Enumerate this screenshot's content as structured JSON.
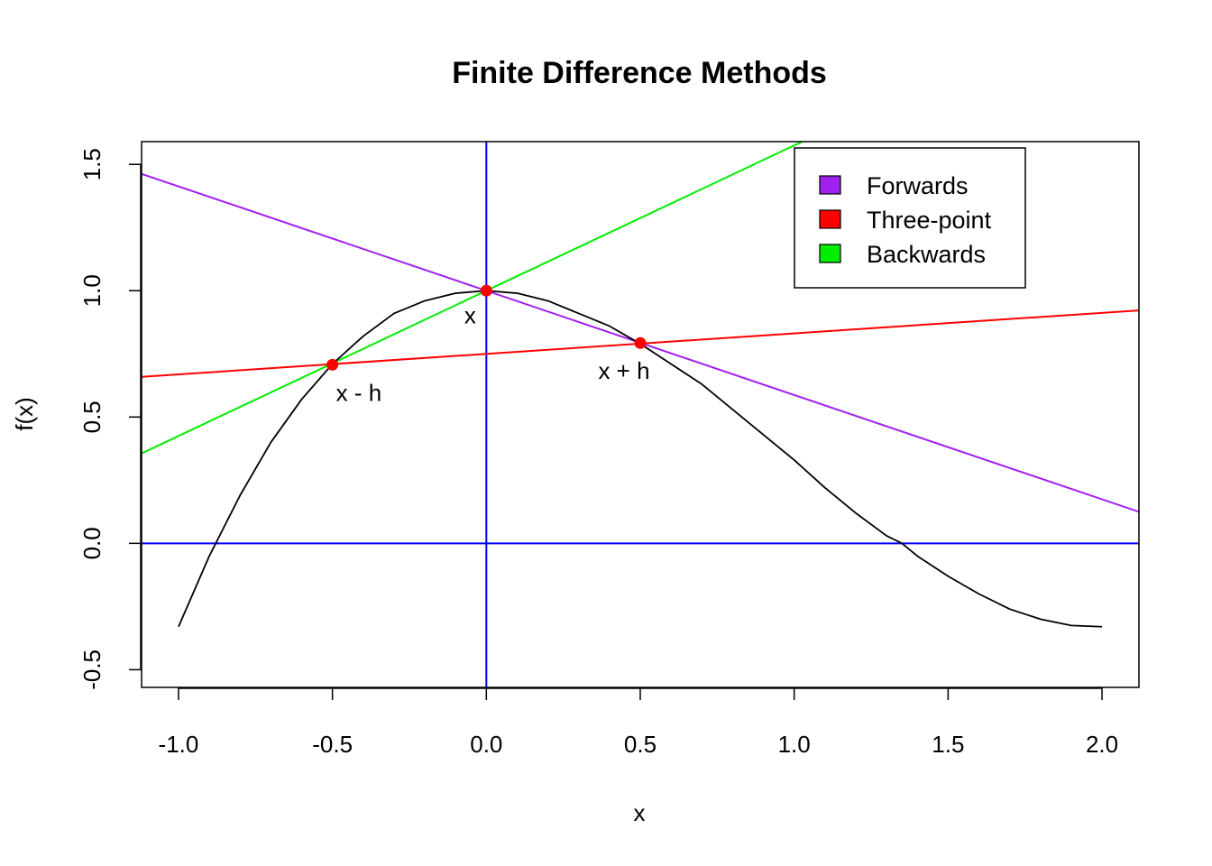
{
  "chart_data": {
    "type": "line",
    "title": "Finite Difference Methods",
    "xlabel": "x",
    "ylabel": "f(x)",
    "xlim": [
      -1.12,
      2.12
    ],
    "ylim": [
      -0.57,
      1.59
    ],
    "xticks": [
      {
        "value": -1.0,
        "label": "-1.0"
      },
      {
        "value": -0.5,
        "label": "-0.5"
      },
      {
        "value": 0.0,
        "label": "0.0"
      },
      {
        "value": 0.5,
        "label": "0.5"
      },
      {
        "value": 1.0,
        "label": "1.0"
      },
      {
        "value": 1.5,
        "label": "1.5"
      },
      {
        "value": 2.0,
        "label": "2.0"
      }
    ],
    "yticks": [
      {
        "value": -0.5,
        "label": "-0.5"
      },
      {
        "value": 0.0,
        "label": "0.0"
      },
      {
        "value": 0.5,
        "label": "0.5"
      },
      {
        "value": 1.0,
        "label": "1.0"
      },
      {
        "value": 1.5,
        "label": "1.5"
      }
    ],
    "curve": {
      "color": "#000000",
      "points": [
        [
          -1.0,
          -0.33
        ],
        [
          -0.9,
          -0.05
        ],
        [
          -0.8,
          0.19
        ],
        [
          -0.7,
          0.4
        ],
        [
          -0.6,
          0.57
        ],
        [
          -0.5,
          0.71
        ],
        [
          -0.4,
          0.82
        ],
        [
          -0.3,
          0.91
        ],
        [
          -0.2,
          0.96
        ],
        [
          -0.1,
          0.99
        ],
        [
          0.0,
          1.0
        ],
        [
          0.1,
          0.99
        ],
        [
          0.2,
          0.96
        ],
        [
          0.3,
          0.91
        ],
        [
          0.4,
          0.86
        ],
        [
          0.5,
          0.79
        ],
        [
          0.6,
          0.71
        ],
        [
          0.7,
          0.63
        ],
        [
          0.8,
          0.53
        ],
        [
          0.9,
          0.43
        ],
        [
          1.0,
          0.33
        ],
        [
          1.1,
          0.22
        ],
        [
          1.2,
          0.12
        ],
        [
          1.3,
          0.03
        ],
        [
          1.35,
          0.0
        ],
        [
          1.4,
          -0.05
        ],
        [
          1.5,
          -0.13
        ],
        [
          1.6,
          -0.2
        ],
        [
          1.7,
          -0.26
        ],
        [
          1.8,
          -0.3
        ],
        [
          1.9,
          -0.325
        ],
        [
          2.0,
          -0.33
        ]
      ]
    },
    "series": [
      {
        "name": "Forwards",
        "color": "#a020f0",
        "intercept": 1.0,
        "slope": -0.4128
      },
      {
        "name": "Three-point",
        "color": "#ff0000",
        "intercept": 0.75,
        "slope": 0.0811
      },
      {
        "name": "Backwards",
        "color": "#00ee00",
        "intercept": 1.0,
        "slope": 0.575
      }
    ],
    "reference_lines": [
      {
        "type": "h",
        "value": 0,
        "color": "#0000ff"
      },
      {
        "type": "v",
        "value": 0,
        "color": "#0000ff"
      }
    ],
    "points": [
      {
        "x": -0.5,
        "y": 0.707,
        "label": "x - h",
        "color": "#ff0000"
      },
      {
        "x": 0.0,
        "y": 1.0,
        "label": "x",
        "color": "#ff0000"
      },
      {
        "x": 0.5,
        "y": 0.793,
        "label": "x + h",
        "color": "#ff0000"
      }
    ],
    "legend_position": "top-right"
  }
}
